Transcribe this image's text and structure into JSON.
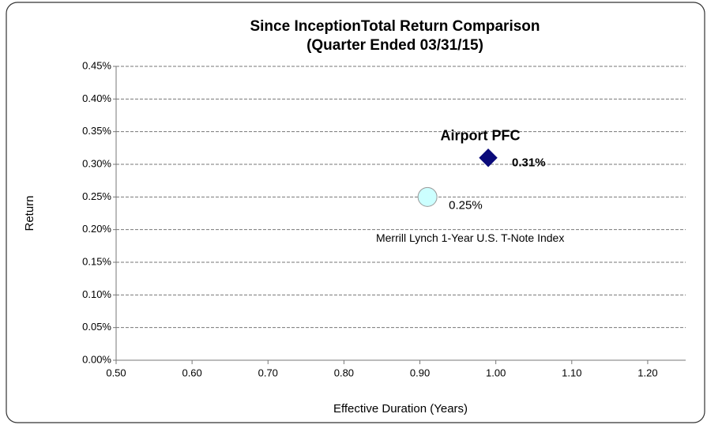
{
  "chart_data": {
    "type": "scatter",
    "title": "Since InceptionTotal Return Comparison",
    "subtitle": "(Quarter Ended 03/31/15)",
    "x_label": "Effective Duration (Years)",
    "y_label": "Return",
    "xlim": [
      0.5,
      1.25
    ],
    "xticks": [
      {
        "value": 0.5,
        "label": "0.50"
      },
      {
        "value": 0.6,
        "label": "0.60"
      },
      {
        "value": 0.7,
        "label": "0.70"
      },
      {
        "value": 0.8,
        "label": "0.80"
      },
      {
        "value": 0.9,
        "label": "0.90"
      },
      {
        "value": 1.0,
        "label": "1.00"
      },
      {
        "value": 1.1,
        "label": "1.10"
      },
      {
        "value": 1.2,
        "label": "1.20"
      }
    ],
    "ylim": [
      0,
      0.45
    ],
    "yticks": [
      {
        "value": 0,
        "label": "0.00%"
      },
      {
        "value": 0.05,
        "label": "0.05%"
      },
      {
        "value": 0.1,
        "label": "0.10%"
      },
      {
        "value": 0.15,
        "label": "0.15%"
      },
      {
        "value": 0.2,
        "label": "0.20%"
      },
      {
        "value": 0.25,
        "label": "0.25%"
      },
      {
        "value": 0.3,
        "label": "0.30%"
      },
      {
        "value": 0.35,
        "label": "0.35%"
      },
      {
        "value": 0.4,
        "label": "0.40%"
      },
      {
        "value": 0.45,
        "label": "0.45%"
      }
    ],
    "grid": true,
    "series": [
      {
        "name": "Airport PFC",
        "color": "#0a0a7a",
        "marker": "diamond",
        "x": [
          0.99
        ],
        "values": [
          0.31
        ],
        "value_labels": [
          "0.31%"
        ]
      },
      {
        "name": "Merrill Lynch 1-Year U.S. T-Note Index",
        "color": "#ccffff",
        "marker": "circle",
        "x": [
          0.91
        ],
        "values": [
          0.25
        ],
        "value_labels": [
          "0.25%"
        ]
      }
    ]
  }
}
